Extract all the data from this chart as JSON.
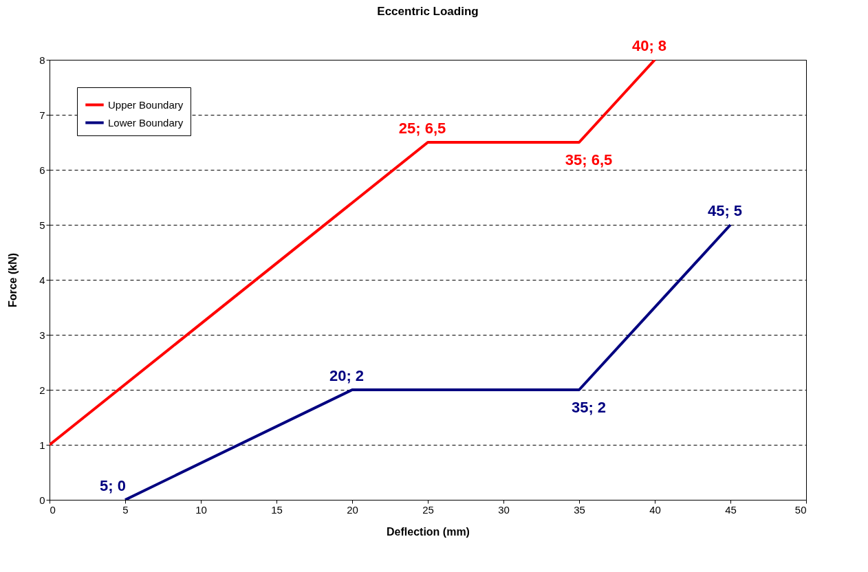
{
  "chart_data": {
    "type": "line",
    "title": "Eccentric Loading",
    "xlabel": "Deflection (mm)",
    "ylabel": "Force (kN)",
    "xlim": [
      0,
      50
    ],
    "xticks": [
      0,
      5,
      10,
      15,
      20,
      25,
      30,
      35,
      40,
      45,
      50
    ],
    "ylim": [
      0,
      8
    ],
    "yticks": [
      0,
      1,
      2,
      3,
      4,
      5,
      6,
      7,
      8
    ],
    "grid": "y",
    "legend": "top left",
    "marker": "none",
    "line_style": "solid",
    "series": [
      {
        "name": "Upper Boundary",
        "color": "#ff0000",
        "x": [
          0,
          25,
          35,
          40
        ],
        "values": [
          1,
          6.5,
          6.5,
          8
        ],
        "value_labels": [
          null,
          "25; 6,5",
          "35; 6,5",
          "40; 8"
        ]
      },
      {
        "name": "Lower Boundary",
        "color": "#000080",
        "x": [
          5,
          20,
          35,
          45
        ],
        "values": [
          0,
          2,
          2,
          5
        ],
        "value_labels": [
          "5; 0",
          "20; 2",
          "35; 2",
          "45; 5"
        ]
      }
    ]
  }
}
